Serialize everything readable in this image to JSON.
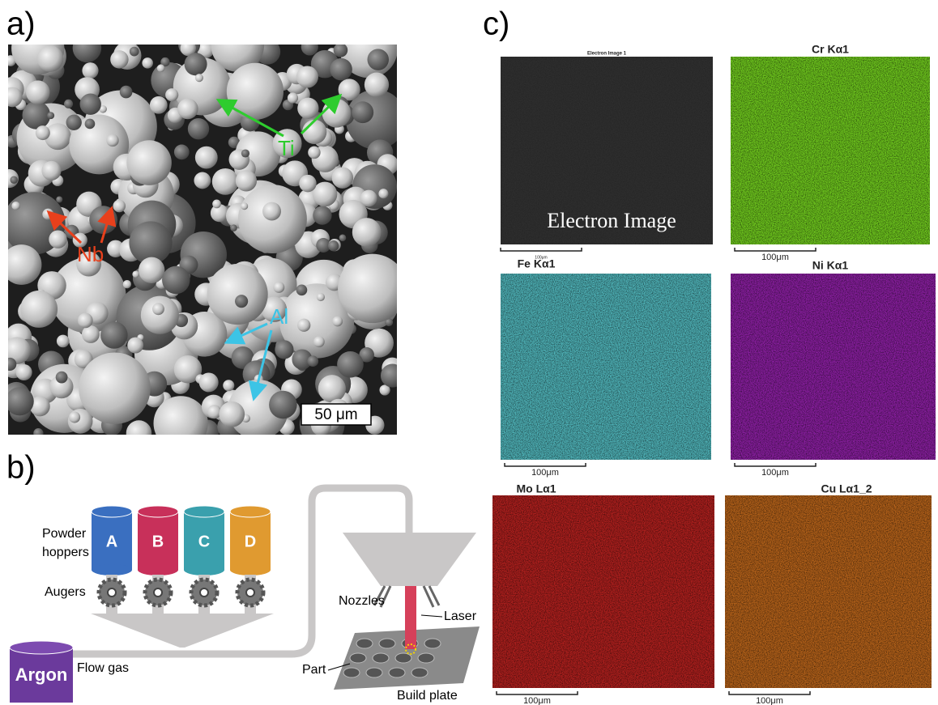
{
  "panel_a": {
    "label": "a)",
    "ti": "Ti",
    "nb": "Nb",
    "al": "Al",
    "scale_bar": "50 μm"
  },
  "panel_b": {
    "label": "b)",
    "hoppers_label": [
      "Powder",
      "hoppers"
    ],
    "hoppers": [
      "A",
      "B",
      "C",
      "D"
    ],
    "augers": "Augers",
    "argon": "Argon",
    "flow_gas": "Flow gas",
    "nozzles": "Nozzles",
    "laser": "Laser",
    "part": "Part",
    "build_plate": "Build plate"
  },
  "panel_c": {
    "label": "c)",
    "maps": [
      {
        "title": "Electron Image 1",
        "overlay": "Electron Image",
        "scale": "100μm",
        "color": "#2e2e2e"
      },
      {
        "title": "Cr Kα1",
        "scale": "100μm",
        "color": "#6fc81e"
      },
      {
        "title": "Fe Kα1",
        "scale": "100μm",
        "color": "#4fb3b8"
      },
      {
        "title": "Ni Kα1",
        "scale": "100μm",
        "color": "#8a1fa0"
      },
      {
        "title": "Mo Lα1",
        "scale": "100μm",
        "color": "#b0201e"
      },
      {
        "title": "Cu Lα1_2",
        "scale": "100μm",
        "color": "#b5621a"
      }
    ]
  }
}
